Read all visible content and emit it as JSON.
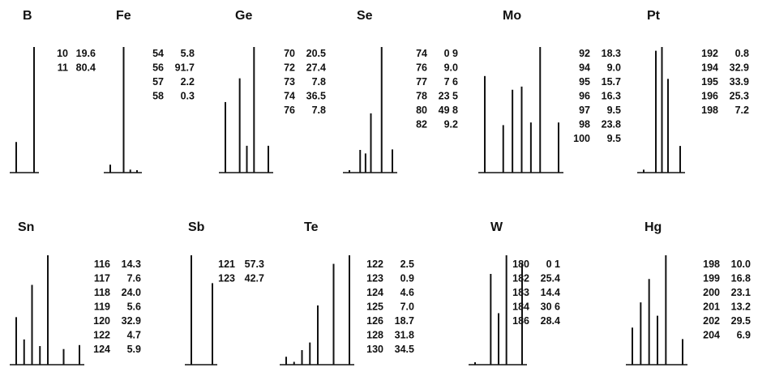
{
  "chart_data": {
    "type": "bar",
    "panels": [
      {
        "element": "B",
        "mass": [
          "10",
          "11"
        ],
        "abundance": [
          "19.6",
          "80.4"
        ]
      },
      {
        "element": "Fe",
        "mass": [
          "54",
          "56",
          "57",
          "58"
        ],
        "abundance": [
          "5.8",
          "91.7",
          "2.2",
          "0.3"
        ]
      },
      {
        "element": "Ge",
        "mass": [
          "70",
          "72",
          "73",
          "74",
          "76"
        ],
        "abundance": [
          "20.5",
          "27.4",
          "7.8",
          "36.5",
          "7.8"
        ]
      },
      {
        "element": "Se",
        "mass": [
          "74",
          "76",
          "77",
          "78",
          "80",
          "82"
        ],
        "abundance": [
          "0 9",
          "9.0",
          "7 6",
          "23 5",
          "49 8",
          "9.2"
        ]
      },
      {
        "element": "Mo",
        "mass": [
          "92",
          "94",
          "95",
          "96",
          "97",
          "98",
          "100"
        ],
        "abundance": [
          "18.3",
          "9.0",
          "15.7",
          "16.3",
          "9.5",
          "23.8",
          "9.5"
        ]
      },
      {
        "element": "Pt",
        "mass": [
          "192",
          "194",
          "195",
          "196",
          "198"
        ],
        "abundance": [
          "0.8",
          "32.9",
          "33.9",
          "25.3",
          "7.2"
        ]
      },
      {
        "element": "Sn",
        "mass": [
          "116",
          "117",
          "118",
          "119",
          "120",
          "122",
          "124"
        ],
        "abundance": [
          "14.3",
          "7.6",
          "24.0",
          "5.6",
          "32.9",
          "4.7",
          "5.9"
        ]
      },
      {
        "element": "Sb",
        "mass": [
          "121",
          "123"
        ],
        "abundance": [
          "57.3",
          "42.7"
        ]
      },
      {
        "element": "Te",
        "mass": [
          "122",
          "123",
          "124",
          "125",
          "126",
          "128",
          "130"
        ],
        "abundance": [
          "2.5",
          "0.9",
          "4.6",
          "7.0",
          "18.7",
          "31.8",
          "34.5"
        ]
      },
      {
        "element": "W",
        "mass": [
          "180",
          "182",
          "183",
          "184",
          "186"
        ],
        "abundance": [
          "0 1",
          "25.4",
          "14.4",
          "30 6",
          "28.4"
        ]
      },
      {
        "element": "Hg",
        "mass": [
          "198",
          "199",
          "200",
          "201",
          "202",
          "204"
        ],
        "abundance": [
          "10.0",
          "16.8",
          "23.1",
          "13.2",
          "29.5",
          "6.9"
        ]
      }
    ]
  }
}
